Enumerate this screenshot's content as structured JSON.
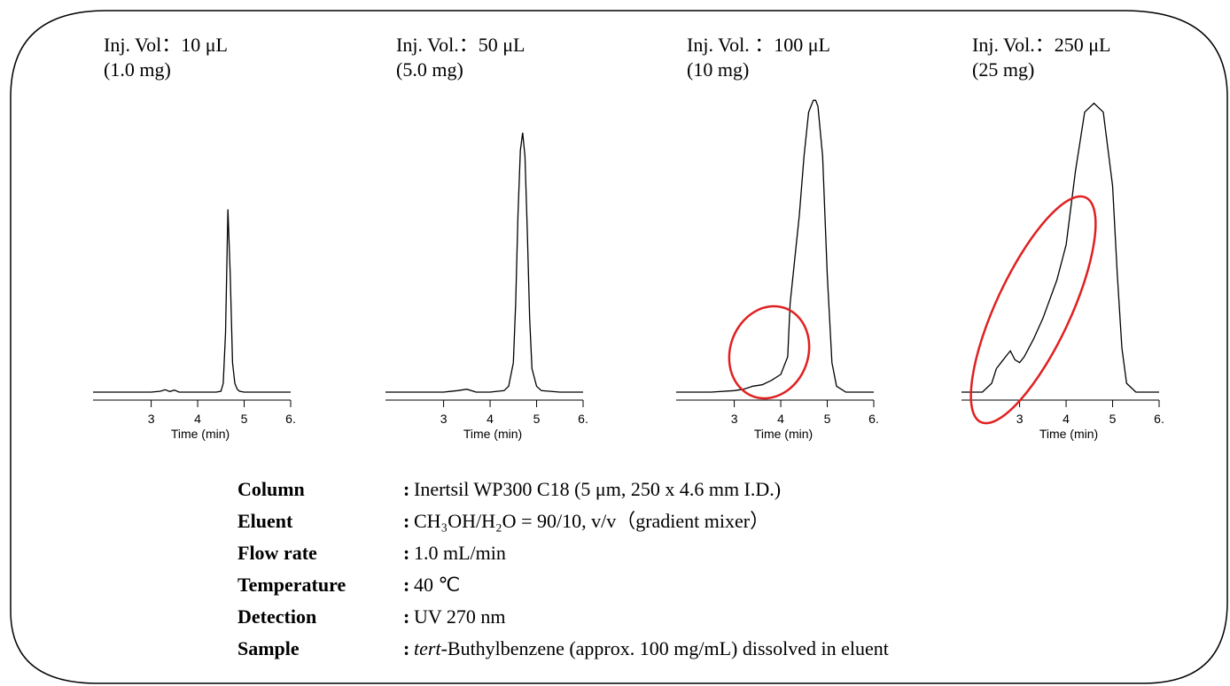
{
  "chart_data": [
    {
      "type": "line",
      "title": "Inj. Vol：10 μL",
      "subtitle": "(1.0 mg)",
      "xlabel": "Time (min)",
      "color": "#000000",
      "xlim": [
        1.75,
        6.0
      ],
      "ylim": [
        0,
        100
      ],
      "xticks": [
        3.0,
        4.0,
        5.0,
        {
          "value": 6,
          "label": "6."
        }
      ],
      "x": [
        1.75,
        2.5,
        3.0,
        3.2,
        3.3,
        3.4,
        3.5,
        3.6,
        4.0,
        4.4,
        4.5,
        4.55,
        4.6,
        4.65,
        4.7,
        4.75,
        4.8,
        4.85,
        4.9,
        5.0,
        5.5,
        6.0
      ],
      "values": [
        0,
        0,
        0,
        0.3,
        0.8,
        0.2,
        0.7,
        0,
        0,
        0,
        0.3,
        3,
        20,
        62,
        40,
        10,
        3,
        1,
        0.3,
        0,
        0,
        0
      ]
    },
    {
      "type": "line",
      "title": "Inj. Vol.：50 μL",
      "subtitle": "(5.0 mg)",
      "xlabel": "Time (min)",
      "color": "#000000",
      "xlim": [
        1.75,
        6.0
      ],
      "ylim": [
        0,
        100
      ],
      "xticks": [
        3.0,
        4.0,
        5.0,
        {
          "value": 6,
          "label": "6."
        }
      ],
      "x": [
        1.75,
        2.5,
        3.0,
        3.3,
        3.5,
        3.7,
        4.0,
        4.3,
        4.4,
        4.5,
        4.55,
        4.6,
        4.65,
        4.7,
        4.75,
        4.8,
        4.85,
        4.9,
        5.0,
        5.1,
        5.5,
        6.0
      ],
      "values": [
        0,
        0,
        0,
        0.5,
        1,
        0,
        0,
        0.5,
        2,
        10,
        30,
        60,
        82,
        88,
        80,
        55,
        25,
        8,
        2,
        0.5,
        0,
        0
      ]
    },
    {
      "type": "line",
      "title": "Inj. Vol. ：100 μL",
      "subtitle": "(10 mg)",
      "xlabel": "Time (min)",
      "color": "#000000",
      "xlim": [
        1.75,
        6.0
      ],
      "ylim": [
        0,
        100
      ],
      "xticks": [
        3.0,
        4.0,
        5.0,
        {
          "value": 6,
          "label": "6."
        }
      ],
      "x": [
        1.75,
        2.5,
        3.0,
        3.2,
        3.4,
        3.6,
        3.8,
        4.0,
        4.15,
        4.2,
        4.3,
        4.4,
        4.5,
        4.6,
        4.7,
        4.75,
        4.8,
        4.9,
        5.0,
        5.1,
        5.2,
        5.4,
        6.0
      ],
      "values": [
        0,
        0,
        0.5,
        1,
        2,
        2.5,
        4,
        6,
        12,
        30,
        45,
        60,
        80,
        95,
        99,
        99,
        97,
        80,
        40,
        10,
        2,
        0,
        0
      ]
    },
    {
      "type": "line",
      "title": "Inj. Vol.：250 μL",
      "subtitle": "(25 mg)",
      "xlabel": "Time (min)",
      "color": "#000000",
      "xlim": [
        1.75,
        6.0
      ],
      "ylim": [
        0,
        100
      ],
      "xticks": [
        3.0,
        4.0,
        5.0,
        {
          "value": 6,
          "label": "6."
        }
      ],
      "x": [
        1.75,
        2.2,
        2.4,
        2.5,
        2.6,
        2.7,
        2.8,
        2.9,
        3.0,
        3.1,
        3.3,
        3.5,
        3.8,
        4.0,
        4.2,
        4.4,
        4.6,
        4.8,
        5.0,
        5.1,
        5.2,
        5.3,
        5.5,
        6.0
      ],
      "values": [
        0,
        0,
        3,
        8,
        10,
        12,
        14,
        11,
        10,
        12,
        18,
        25,
        38,
        50,
        75,
        95,
        98,
        95,
        70,
        40,
        15,
        3,
        0,
        0
      ]
    }
  ],
  "conditions": {
    "separator": ":",
    "rows": [
      {
        "label": "Column",
        "value": "Inertsil WP300 C18 (5 μm, 250 x 4.6 mm I.D.)"
      },
      {
        "label": "Eluent",
        "value": "CH₃OH/H₂O = 90/10, v/v（gradient  mixer）"
      },
      {
        "label": "Flow rate",
        "value": "1.0 mL/min"
      },
      {
        "label": "Temperature",
        "value": "40 ℃"
      },
      {
        "label": "Detection",
        "value": "UV 270 nm"
      },
      {
        "label": "Sample",
        "italic": "tert",
        "value": "-Buthylbenzene (approx. 100 mg/mL)  dissolved in eluent"
      }
    ]
  }
}
